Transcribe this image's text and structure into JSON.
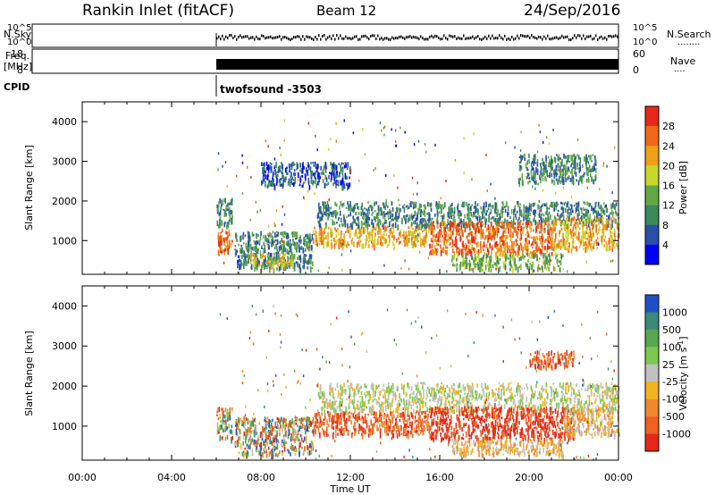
{
  "header": {
    "title": "Rankin Inlet (fitACF)",
    "beam": "Beam 12",
    "date": "24/Sep/2016"
  },
  "strips": {
    "nsky": {
      "label": "N.Sky",
      "ticks": [
        "10^5",
        "10^0"
      ]
    },
    "nsearch": {
      "label": "N.Search",
      "legend": "........",
      "ticks": [
        "10^5",
        "10^0"
      ]
    },
    "freq": {
      "label_lines": [
        "Freq.",
        "[MHz]"
      ],
      "ticks": [
        "18",
        "8"
      ]
    },
    "nave": {
      "label": "Nave",
      "legend": "....",
      "ticks": [
        "60",
        "0"
      ]
    },
    "cpid": {
      "label": "CPID",
      "program": "twofsound -3503"
    }
  },
  "x_axis": {
    "label": "Time UT",
    "tick_labels": [
      "00:00",
      "04:00",
      "08:00",
      "12:00",
      "16:00",
      "20:00",
      "00:00"
    ],
    "tick_hours": [
      0,
      4,
      8,
      12,
      16,
      20,
      24
    ]
  },
  "colors": {
    "power_scale": [
      "#0000ff",
      "#2a4fa8",
      "#3a8a5c",
      "#64a846",
      "#c8d82a",
      "#f0a018",
      "#f06818",
      "#e62818"
    ],
    "velocity_scale": [
      "#2050c8",
      "#3a8a78",
      "#56a850",
      "#7dc850",
      "#c0c0c0",
      "#f0b420",
      "#f08830",
      "#f06020",
      "#e62818"
    ]
  },
  "chart_data": [
    {
      "type": "heatmap",
      "panel": "power",
      "xlabel": "",
      "ylabel": "Slant Range [km]",
      "xlim": [
        0,
        24
      ],
      "ylim": [
        150,
        4500
      ],
      "y_ticks": [
        1000,
        2000,
        3000,
        4000
      ],
      "colorbar": {
        "label": "Power [dB]",
        "range": [
          0,
          32
        ],
        "ticks": [
          4,
          8,
          12,
          16,
          20,
          24,
          28
        ]
      },
      "data_start_hour": 6.0,
      "echo_regions": [
        {
          "t": [
            6.0,
            6.7
          ],
          "r": [
            700,
            1300
          ],
          "level": 26
        },
        {
          "t": [
            6.0,
            6.7
          ],
          "r": [
            1400,
            2100
          ],
          "level": 12
        },
        {
          "t": [
            6.8,
            10.3
          ],
          "r": [
            300,
            1250
          ],
          "level": 10
        },
        {
          "t": [
            7.5,
            9.5
          ],
          "r": [
            400,
            700
          ],
          "level": 20
        },
        {
          "t": [
            10.3,
            15.5
          ],
          "r": [
            900,
            1400
          ],
          "level": 24
        },
        {
          "t": [
            10.5,
            24.0
          ],
          "r": [
            1400,
            2000
          ],
          "level": 13
        },
        {
          "t": [
            15.5,
            21.0
          ],
          "r": [
            700,
            1500
          ],
          "level": 26
        },
        {
          "t": [
            21.0,
            24.0
          ],
          "r": [
            800,
            1600
          ],
          "level": 25
        },
        {
          "t": [
            16.5,
            21.5
          ],
          "r": [
            300,
            700
          ],
          "level": 16
        },
        {
          "t": [
            19.5,
            23.0
          ],
          "r": [
            2500,
            3200
          ],
          "level": 12
        },
        {
          "t": [
            8.0,
            12.0
          ],
          "r": [
            2400,
            3000
          ],
          "level": 7
        }
      ]
    },
    {
      "type": "heatmap",
      "panel": "velocity",
      "xlabel": "Time UT",
      "ylabel": "Slant Range [km]",
      "xlim": [
        0,
        24
      ],
      "ylim": [
        150,
        4500
      ],
      "y_ticks": [
        1000,
        2000,
        3000,
        4000
      ],
      "colorbar": {
        "label": "Velocity [m s^-1]",
        "tick_labels": [
          "1000",
          "500",
          "100",
          "25",
          "-25",
          "-100",
          "-500",
          "-1000"
        ]
      },
      "data_start_hour": 6.0,
      "echo_regions": [
        {
          "t": [
            6.0,
            6.7
          ],
          "r": [
            700,
            1500
          ],
          "level": "toward-mixed"
        },
        {
          "t": [
            6.8,
            10.3
          ],
          "r": [
            300,
            1250
          ],
          "level": "mixed"
        },
        {
          "t": [
            10.3,
            15.5
          ],
          "r": [
            800,
            1400
          ],
          "level": -300
        },
        {
          "t": [
            10.5,
            24.0
          ],
          "r": [
            1400,
            2100
          ],
          "level": 0
        },
        {
          "t": [
            15.5,
            22.0
          ],
          "r": [
            700,
            1500
          ],
          "level": -500
        },
        {
          "t": [
            21.5,
            24.0
          ],
          "r": [
            800,
            1500
          ],
          "level": -150
        },
        {
          "t": [
            20.0,
            22.0
          ],
          "r": [
            2500,
            2900
          ],
          "level": -300
        },
        {
          "t": [
            16.5,
            21.5
          ],
          "r": [
            300,
            700
          ],
          "level": -100
        }
      ]
    }
  ]
}
